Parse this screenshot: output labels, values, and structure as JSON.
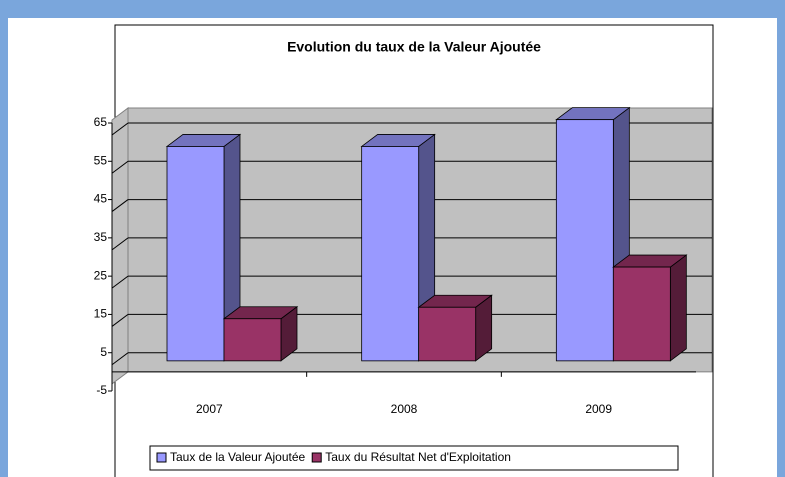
{
  "chart_data": {
    "type": "bar3d",
    "title": "Evolution du taux de la Valeur Ajoutée",
    "categories": [
      "2007",
      "2008",
      "2009"
    ],
    "series": [
      {
        "name": "Taux de la Valeur Ajoutée",
        "color": "#9999ff",
        "values": [
          56,
          56,
          63
        ]
      },
      {
        "name": "Taux du Résultat Net d'Exploitation",
        "color": "#993366",
        "values": [
          11,
          14,
          24.5
        ]
      }
    ],
    "ylim": [
      -5,
      65
    ],
    "yticks": [
      -5,
      5,
      15,
      25,
      35,
      45,
      55,
      65
    ],
    "grid": true,
    "legend": "bottom"
  }
}
